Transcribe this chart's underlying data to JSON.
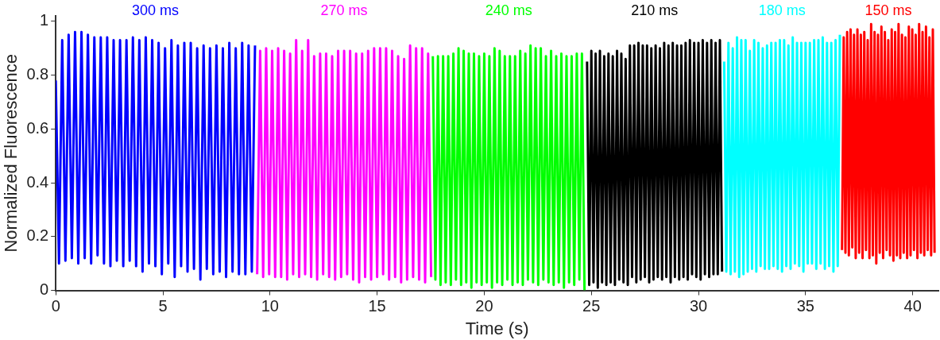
{
  "chart_data": {
    "type": "line",
    "xlabel": "Time (s)",
    "ylabel": "Normalized Fluorescence",
    "xlim": [
      0,
      41.2
    ],
    "ylim": [
      0,
      1.02
    ],
    "xticks": [
      0,
      5,
      10,
      15,
      20,
      25,
      30,
      35,
      40
    ],
    "yticks": [
      0,
      0.2,
      0.4,
      0.6,
      0.8,
      1
    ],
    "grid": false,
    "legend": false,
    "line_style": "solid",
    "series": [
      {
        "name": "300 ms",
        "color": "#0000ff",
        "x": [
          0,
          0.15,
          0.3,
          0.45,
          0.6,
          0.75,
          0.9,
          1.05,
          1.2,
          1.35,
          1.5,
          1.65,
          1.8,
          1.95,
          2.1,
          2.25,
          2.4,
          2.55,
          2.7,
          2.85,
          3,
          3.15,
          3.3,
          3.45,
          3.6,
          3.75,
          3.9,
          4.05,
          4.2,
          4.35,
          4.5,
          4.65,
          4.8,
          4.95,
          5.1,
          5.25,
          5.4,
          5.55,
          5.7,
          5.85,
          6,
          6.15,
          6.3,
          6.45,
          6.6,
          6.75,
          6.9,
          7.05,
          7.2,
          7.35,
          7.5,
          7.65,
          7.8,
          7.95,
          8.1,
          8.25,
          8.4,
          8.55,
          8.7,
          8.85,
          9,
          9.15,
          9.3
        ],
        "values": [
          0.78,
          0.1,
          0.93,
          0.11,
          0.95,
          0.12,
          0.96,
          0.1,
          0.96,
          0.12,
          0.95,
          0.1,
          0.94,
          0.13,
          0.94,
          0.1,
          0.94,
          0.09,
          0.93,
          0.11,
          0.93,
          0.09,
          0.93,
          0.11,
          0.94,
          0.09,
          0.93,
          0.07,
          0.94,
          0.1,
          0.93,
          0.09,
          0.92,
          0.06,
          0.9,
          0.1,
          0.93,
          0.05,
          0.91,
          0.09,
          0.92,
          0.07,
          0.92,
          0.08,
          0.9,
          0.04,
          0.91,
          0.08,
          0.9,
          0.06,
          0.91,
          0.07,
          0.9,
          0.05,
          0.92,
          0.07,
          0.9,
          0.06,
          0.92,
          0.06,
          0.91,
          0.07,
          0.91
        ]
      },
      {
        "name": "270 ms",
        "color": "#ff00ff",
        "x": [
          9.4,
          9.54,
          9.68,
          9.82,
          9.96,
          10.1,
          10.24,
          10.38,
          10.52,
          10.66,
          10.8,
          10.94,
          11.08,
          11.22,
          11.36,
          11.5,
          11.64,
          11.78,
          11.92,
          12.06,
          12.2,
          12.34,
          12.48,
          12.62,
          12.76,
          12.9,
          13.04,
          13.18,
          13.32,
          13.46,
          13.6,
          13.74,
          13.88,
          14.02,
          14.16,
          14.3,
          14.44,
          14.58,
          14.72,
          14.86,
          15,
          15.14,
          15.28,
          15.42,
          15.56,
          15.7,
          15.84,
          15.98,
          16.12,
          16.26,
          16.4,
          16.54,
          16.68,
          16.82,
          16.96,
          17.1,
          17.24,
          17.38,
          17.52
        ],
        "values": [
          0.06,
          0.89,
          0.05,
          0.9,
          0.06,
          0.89,
          0.05,
          0.9,
          0.05,
          0.89,
          0.04,
          0.88,
          0.06,
          0.93,
          0.05,
          0.89,
          0.06,
          0.93,
          0.05,
          0.87,
          0.04,
          0.88,
          0.06,
          0.88,
          0.05,
          0.87,
          0.04,
          0.89,
          0.05,
          0.89,
          0.06,
          0.89,
          0.04,
          0.88,
          0.03,
          0.88,
          0.05,
          0.89,
          0.04,
          0.9,
          0.05,
          0.9,
          0.06,
          0.9,
          0.04,
          0.89,
          0.05,
          0.87,
          0.03,
          0.86,
          0.04,
          0.91,
          0.05,
          0.9,
          0.04,
          0.9,
          0.03,
          0.88,
          0.05
        ]
      },
      {
        "name": "240 ms",
        "color": "#00ff00",
        "x": [
          17.6,
          17.72,
          17.84,
          17.96,
          18.08,
          18.2,
          18.32,
          18.44,
          18.56,
          18.68,
          18.8,
          18.92,
          19.04,
          19.16,
          19.28,
          19.4,
          19.52,
          19.64,
          19.76,
          19.88,
          20,
          20.12,
          20.24,
          20.36,
          20.48,
          20.6,
          20.72,
          20.84,
          20.96,
          21.08,
          21.2,
          21.32,
          21.44,
          21.56,
          21.68,
          21.8,
          21.92,
          22.04,
          22.16,
          22.28,
          22.4,
          22.52,
          22.64,
          22.76,
          22.88,
          23,
          23.12,
          23.24,
          23.36,
          23.48,
          23.6,
          23.72,
          23.84,
          23.96,
          24.08,
          24.2,
          24.32,
          24.44,
          24.56,
          24.68
        ],
        "values": [
          0.87,
          0.04,
          0.87,
          0.02,
          0.87,
          0.03,
          0.87,
          0.02,
          0.88,
          0.04,
          0.9,
          0.02,
          0.89,
          0.03,
          0.88,
          0.01,
          0.88,
          0.03,
          0.87,
          0.02,
          0.88,
          0.03,
          0.87,
          0.01,
          0.9,
          0.03,
          0.89,
          0.02,
          0.87,
          0.04,
          0.87,
          0.02,
          0.87,
          0.03,
          0.89,
          0.02,
          0.88,
          0.04,
          0.91,
          0.03,
          0.9,
          0.02,
          0.9,
          0.04,
          0.87,
          0.03,
          0.89,
          0.02,
          0.87,
          0.03,
          0.88,
          0.01,
          0.87,
          0.03,
          0.87,
          0.02,
          0.88,
          0.04,
          0.88,
          0.0
        ]
      },
      {
        "name": "210 ms",
        "color": "#000000",
        "x": [
          24.8,
          24.9,
          25,
          25.1,
          25.2,
          25.3,
          25.4,
          25.5,
          25.6,
          25.7,
          25.8,
          25.9,
          26,
          26.1,
          26.2,
          26.3,
          26.4,
          26.5,
          26.6,
          26.7,
          26.8,
          26.9,
          27,
          27.1,
          27.2,
          27.3,
          27.4,
          27.5,
          27.6,
          27.7,
          27.8,
          27.9,
          28,
          28.1,
          28.2,
          28.3,
          28.4,
          28.5,
          28.6,
          28.7,
          28.8,
          28.9,
          29,
          29.1,
          29.2,
          29.3,
          29.4,
          29.5,
          29.6,
          29.7,
          29.8,
          29.9,
          30,
          30.1,
          30.2,
          30.3,
          30.4,
          30.5,
          30.6,
          30.7,
          30.8,
          30.9,
          31,
          31.1
        ],
        "values": [
          0.85,
          0.02,
          0.89,
          0.03,
          0.88,
          0.01,
          0.89,
          0.03,
          0.87,
          0.02,
          0.88,
          0.03,
          0.87,
          0.02,
          0.89,
          0.04,
          0.88,
          0.03,
          0.86,
          0.02,
          0.91,
          0.05,
          0.91,
          0.03,
          0.92,
          0.04,
          0.91,
          0.05,
          0.91,
          0.03,
          0.9,
          0.04,
          0.91,
          0.05,
          0.9,
          0.04,
          0.92,
          0.05,
          0.91,
          0.03,
          0.92,
          0.05,
          0.91,
          0.04,
          0.91,
          0.05,
          0.92,
          0.04,
          0.93,
          0.06,
          0.92,
          0.05,
          0.92,
          0.04,
          0.93,
          0.06,
          0.92,
          0.05,
          0.93,
          0.06,
          0.92,
          0.06,
          0.93,
          0.07
        ]
      },
      {
        "name": "180 ms",
        "color": "#00ffff",
        "x": [
          31.2,
          31.3,
          31.4,
          31.5,
          31.6,
          31.7,
          31.8,
          31.9,
          32,
          32.1,
          32.2,
          32.3,
          32.4,
          32.5,
          32.6,
          32.7,
          32.8,
          32.9,
          33,
          33.1,
          33.2,
          33.3,
          33.4,
          33.5,
          33.6,
          33.7,
          33.8,
          33.9,
          34,
          34.1,
          34.2,
          34.3,
          34.4,
          34.5,
          34.6,
          34.7,
          34.8,
          34.9,
          35,
          35.1,
          35.2,
          35.3,
          35.4,
          35.5,
          35.6,
          35.7,
          35.8,
          35.9,
          36,
          36.1,
          36.2,
          36.3,
          36.4,
          36.5,
          36.6
        ],
        "values": [
          0.85,
          0.07,
          0.92,
          0.06,
          0.9,
          0.07,
          0.94,
          0.05,
          0.93,
          0.06,
          0.93,
          0.07,
          0.89,
          0.08,
          0.93,
          0.07,
          0.92,
          0.09,
          0.9,
          0.08,
          0.91,
          0.08,
          0.92,
          0.09,
          0.92,
          0.08,
          0.93,
          0.07,
          0.93,
          0.09,
          0.91,
          0.08,
          0.94,
          0.1,
          0.92,
          0.09,
          0.92,
          0.07,
          0.92,
          0.1,
          0.92,
          0.1,
          0.93,
          0.08,
          0.93,
          0.1,
          0.94,
          0.08,
          0.92,
          0.09,
          0.92,
          0.07,
          0.93,
          0.09,
          0.95
        ]
      },
      {
        "name": "150 ms",
        "color": "#ff0000",
        "x": [
          36.7,
          36.78,
          36.86,
          36.94,
          37.02,
          37.1,
          37.18,
          37.26,
          37.34,
          37.42,
          37.5,
          37.58,
          37.66,
          37.74,
          37.82,
          37.9,
          37.98,
          38.06,
          38.14,
          38.22,
          38.3,
          38.38,
          38.46,
          38.54,
          38.62,
          38.7,
          38.78,
          38.86,
          38.94,
          39.02,
          39.1,
          39.18,
          39.26,
          39.34,
          39.42,
          39.5,
          39.58,
          39.66,
          39.74,
          39.82,
          39.9,
          39.98,
          40.06,
          40.14,
          40.22,
          40.3,
          40.38,
          40.46,
          40.54,
          40.62,
          40.7,
          40.78,
          40.86,
          40.94,
          41.02
        ],
        "values": [
          0.15,
          0.94,
          0.14,
          0.96,
          0.13,
          0.97,
          0.16,
          0.95,
          0.12,
          0.97,
          0.14,
          0.95,
          0.12,
          0.96,
          0.15,
          0.93,
          0.12,
          0.99,
          0.13,
          0.96,
          0.1,
          0.95,
          0.14,
          0.98,
          0.12,
          0.96,
          0.15,
          0.93,
          0.13,
          0.97,
          0.11,
          0.96,
          0.13,
          0.99,
          0.12,
          0.95,
          0.14,
          0.94,
          0.12,
          0.98,
          0.13,
          0.97,
          0.15,
          0.95,
          0.12,
          0.99,
          0.14,
          0.96,
          0.13,
          0.98,
          0.15,
          0.94,
          0.13,
          0.97,
          0.14
        ]
      }
    ]
  }
}
